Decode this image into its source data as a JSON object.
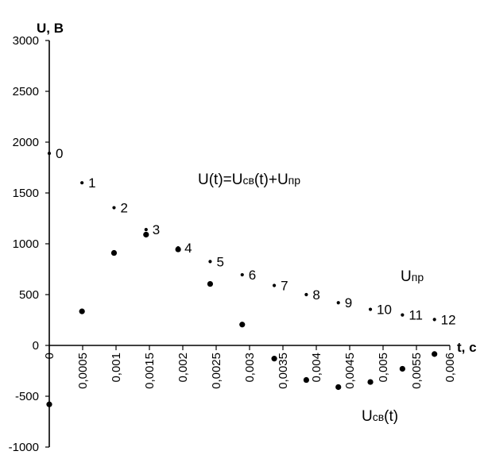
{
  "chart_data": {
    "type": "scatter",
    "ylabel": "U, В",
    "xlabel": "t, c",
    "xlim": [
      0,
      0.006
    ],
    "ylim": [
      -1000,
      3000
    ],
    "x_ticks": [
      "0",
      "0,0005",
      "0,001",
      "0,0015",
      "0,002",
      "0,0025",
      "0,003",
      "0,0035",
      "0,004",
      "0,0045",
      "0,005",
      "0,0055",
      "0,006"
    ],
    "y_ticks": [
      "3000",
      "2500",
      "2000",
      "1500",
      "1000",
      "500",
      "0",
      "-500",
      "-1000"
    ],
    "series": [
      {
        "key": "sum",
        "marker": "small-dot",
        "points": [
          {
            "x": 0.0,
            "y": 1890,
            "label": "0"
          },
          {
            "x": 0.00049,
            "y": 1600,
            "label": "1"
          },
          {
            "x": 0.00097,
            "y": 1355,
            "label": "2"
          },
          {
            "x": 0.00145,
            "y": 1140,
            "label": "3"
          },
          {
            "x": 0.00193,
            "y": 960,
            "label": "4"
          },
          {
            "x": 0.00241,
            "y": 825,
            "label": "5"
          },
          {
            "x": 0.00289,
            "y": 695,
            "label": "6"
          },
          {
            "x": 0.00337,
            "y": 590,
            "label": "7"
          },
          {
            "x": 0.00385,
            "y": 500,
            "label": "8"
          },
          {
            "x": 0.00433,
            "y": 420,
            "label": "9"
          },
          {
            "x": 0.00481,
            "y": 355,
            "label": "10"
          },
          {
            "x": 0.00529,
            "y": 300,
            "label": "11"
          },
          {
            "x": 0.00577,
            "y": 255,
            "label": "12"
          }
        ]
      },
      {
        "key": "usv",
        "marker": "dot",
        "points": [
          {
            "x": 0.0,
            "y": -580
          },
          {
            "x": 0.00049,
            "y": 335
          },
          {
            "x": 0.00097,
            "y": 910
          },
          {
            "x": 0.00145,
            "y": 1090
          },
          {
            "x": 0.00193,
            "y": 945
          },
          {
            "x": 0.00241,
            "y": 605
          },
          {
            "x": 0.00289,
            "y": 205
          },
          {
            "x": 0.00337,
            "y": -130
          },
          {
            "x": 0.00385,
            "y": -340
          },
          {
            "x": 0.00433,
            "y": -410
          },
          {
            "x": 0.00481,
            "y": -360
          },
          {
            "x": 0.00529,
            "y": -230
          },
          {
            "x": 0.00577,
            "y": -85
          }
        ]
      }
    ],
    "annotations": {
      "formula": {
        "a": "U(t)=U",
        "sub1": "св",
        "b": "(t)+U",
        "sub2": "пр"
      },
      "upr": {
        "a": "U",
        "sub": "пр"
      },
      "usv": {
        "a": "U",
        "sub": "св",
        "b": "(t)"
      }
    },
    "grid": false,
    "legend": "none"
  }
}
